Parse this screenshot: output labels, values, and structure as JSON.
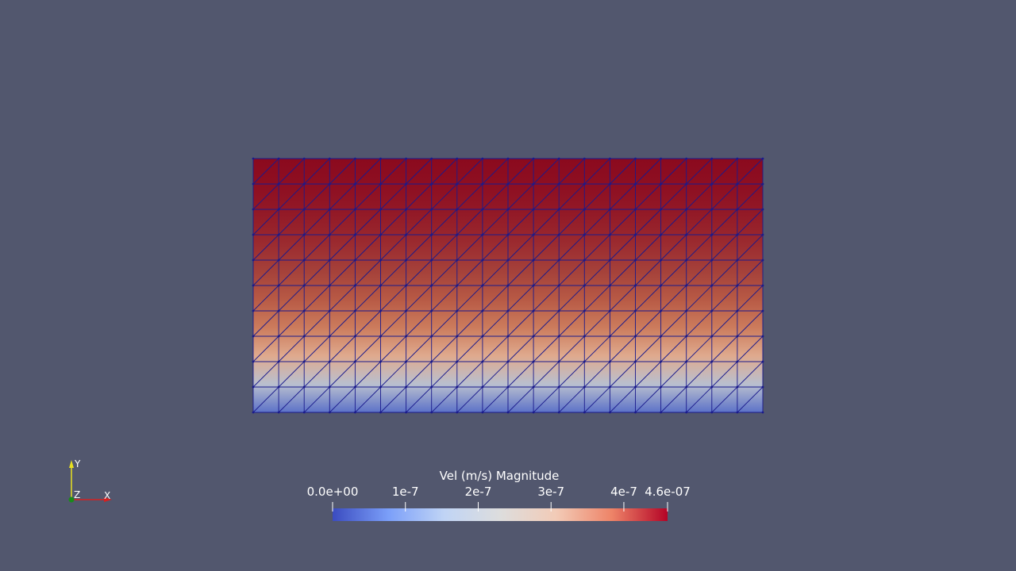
{
  "scalar_bar": {
    "title": "Vel (m/s) Magnitude",
    "range": [
      0,
      4.6e-07
    ],
    "ticks": [
      {
        "value": 0,
        "label": "0.0e+00"
      },
      {
        "value": 1e-07,
        "label": "1e-7"
      },
      {
        "value": 2e-07,
        "label": "2e-7"
      },
      {
        "value": 3e-07,
        "label": "3e-7"
      },
      {
        "value": 4e-07,
        "label": "4e-7"
      },
      {
        "value": 4.6e-07,
        "label": "4.6e-07"
      }
    ],
    "colormap": [
      "#3b4cc0",
      "#7b9ff9",
      "#c0d4f5",
      "#dddddd",
      "#f2cbb7",
      "#ee8468",
      "#b40426"
    ]
  },
  "orientation_axes": {
    "x_label": "X",
    "y_label": "Y",
    "z_label": "Z",
    "x_color": "#d42020",
    "y_color": "#e8e020",
    "z_color": "#1a8a1a"
  },
  "mesh": {
    "columns": 20,
    "rows": 10,
    "edge_color": "#1a1a8c",
    "row_colors_top_to_bottom": [
      "#8b0a1e",
      "#8e0f22",
      "#931a27",
      "#9b2a2f",
      "#a5413a",
      "#b85a45",
      "#cc7c5d",
      "#dfaa8e",
      "#b9bfcf",
      "#5c72c8"
    ]
  },
  "background_color": "#52576e"
}
